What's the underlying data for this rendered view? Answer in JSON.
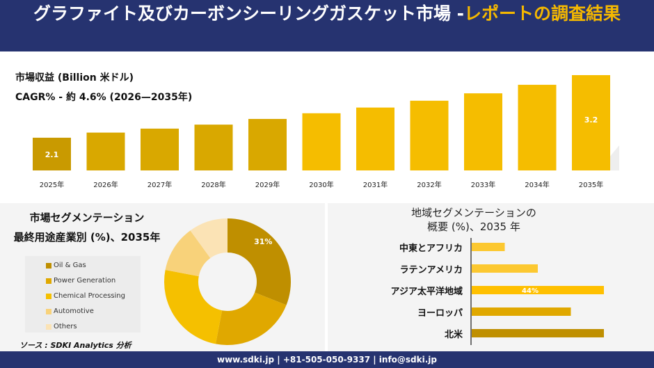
{
  "header": {
    "title_main": "グラファイト及びカーボンシーリングガスケット市場 -",
    "title_highlight": "レポートの調査結果"
  },
  "colors": {
    "navy": "#263370",
    "gold": "#f5b800"
  },
  "revenue": {
    "label": "市場収益 (Billion 米ドル)",
    "cagr": "CAGR% - 約 4.6% (2026—2035年)"
  },
  "segment": {
    "title": "市場セグメンテーション",
    "subtitle": "最終用途産業別 (%)、2035年",
    "source": "ソース : SDKI Analytics 分析"
  },
  "region": {
    "title_line1": "地域セグメンテーションの",
    "title_line2": "概要 (%)、2035 年"
  },
  "footer": {
    "contact": "www.sdki.jp | +81-505-050-9337 | info@sdki.jp"
  },
  "chart_data": [
    {
      "type": "bar",
      "categories": [
        "2025年",
        "2026年",
        "2027年",
        "2028年",
        "2029年",
        "2030年",
        "2031年",
        "2032年",
        "2033年",
        "2034年",
        "2035年"
      ],
      "values": [
        2.1,
        2.19,
        2.26,
        2.33,
        2.43,
        2.53,
        2.63,
        2.75,
        2.88,
        3.03,
        3.2
      ],
      "data_labels": {
        "0": "2.1",
        "10": "3.2"
      },
      "ylabel": "",
      "xlabel": ""
    },
    {
      "type": "pie",
      "donut": true,
      "categories": [
        "Oil & Gas",
        "Power Generation",
        "Chemical Processing",
        "Automotive",
        "Others"
      ],
      "values": [
        31,
        22,
        25,
        12,
        10
      ],
      "colors": [
        "#bf8f00",
        "#e0a800",
        "#f5c000",
        "#f8d27a",
        "#fbe3b5"
      ],
      "data_labels": {
        "0": "31%"
      },
      "legend": "left"
    },
    {
      "type": "bar",
      "orientation": "horizontal",
      "categories": [
        "中東とアフリカ",
        "ラテンアメリカ",
        "アジア太平洋地域",
        "ヨーロッパ",
        "北米"
      ],
      "values": [
        11,
        22,
        44,
        33,
        44
      ],
      "colors": [
        "#fcc830",
        "#fcc830",
        "#ffc000",
        "#e0a800",
        "#bf8f00"
      ],
      "data_labels": {
        "2": "44%"
      }
    }
  ]
}
